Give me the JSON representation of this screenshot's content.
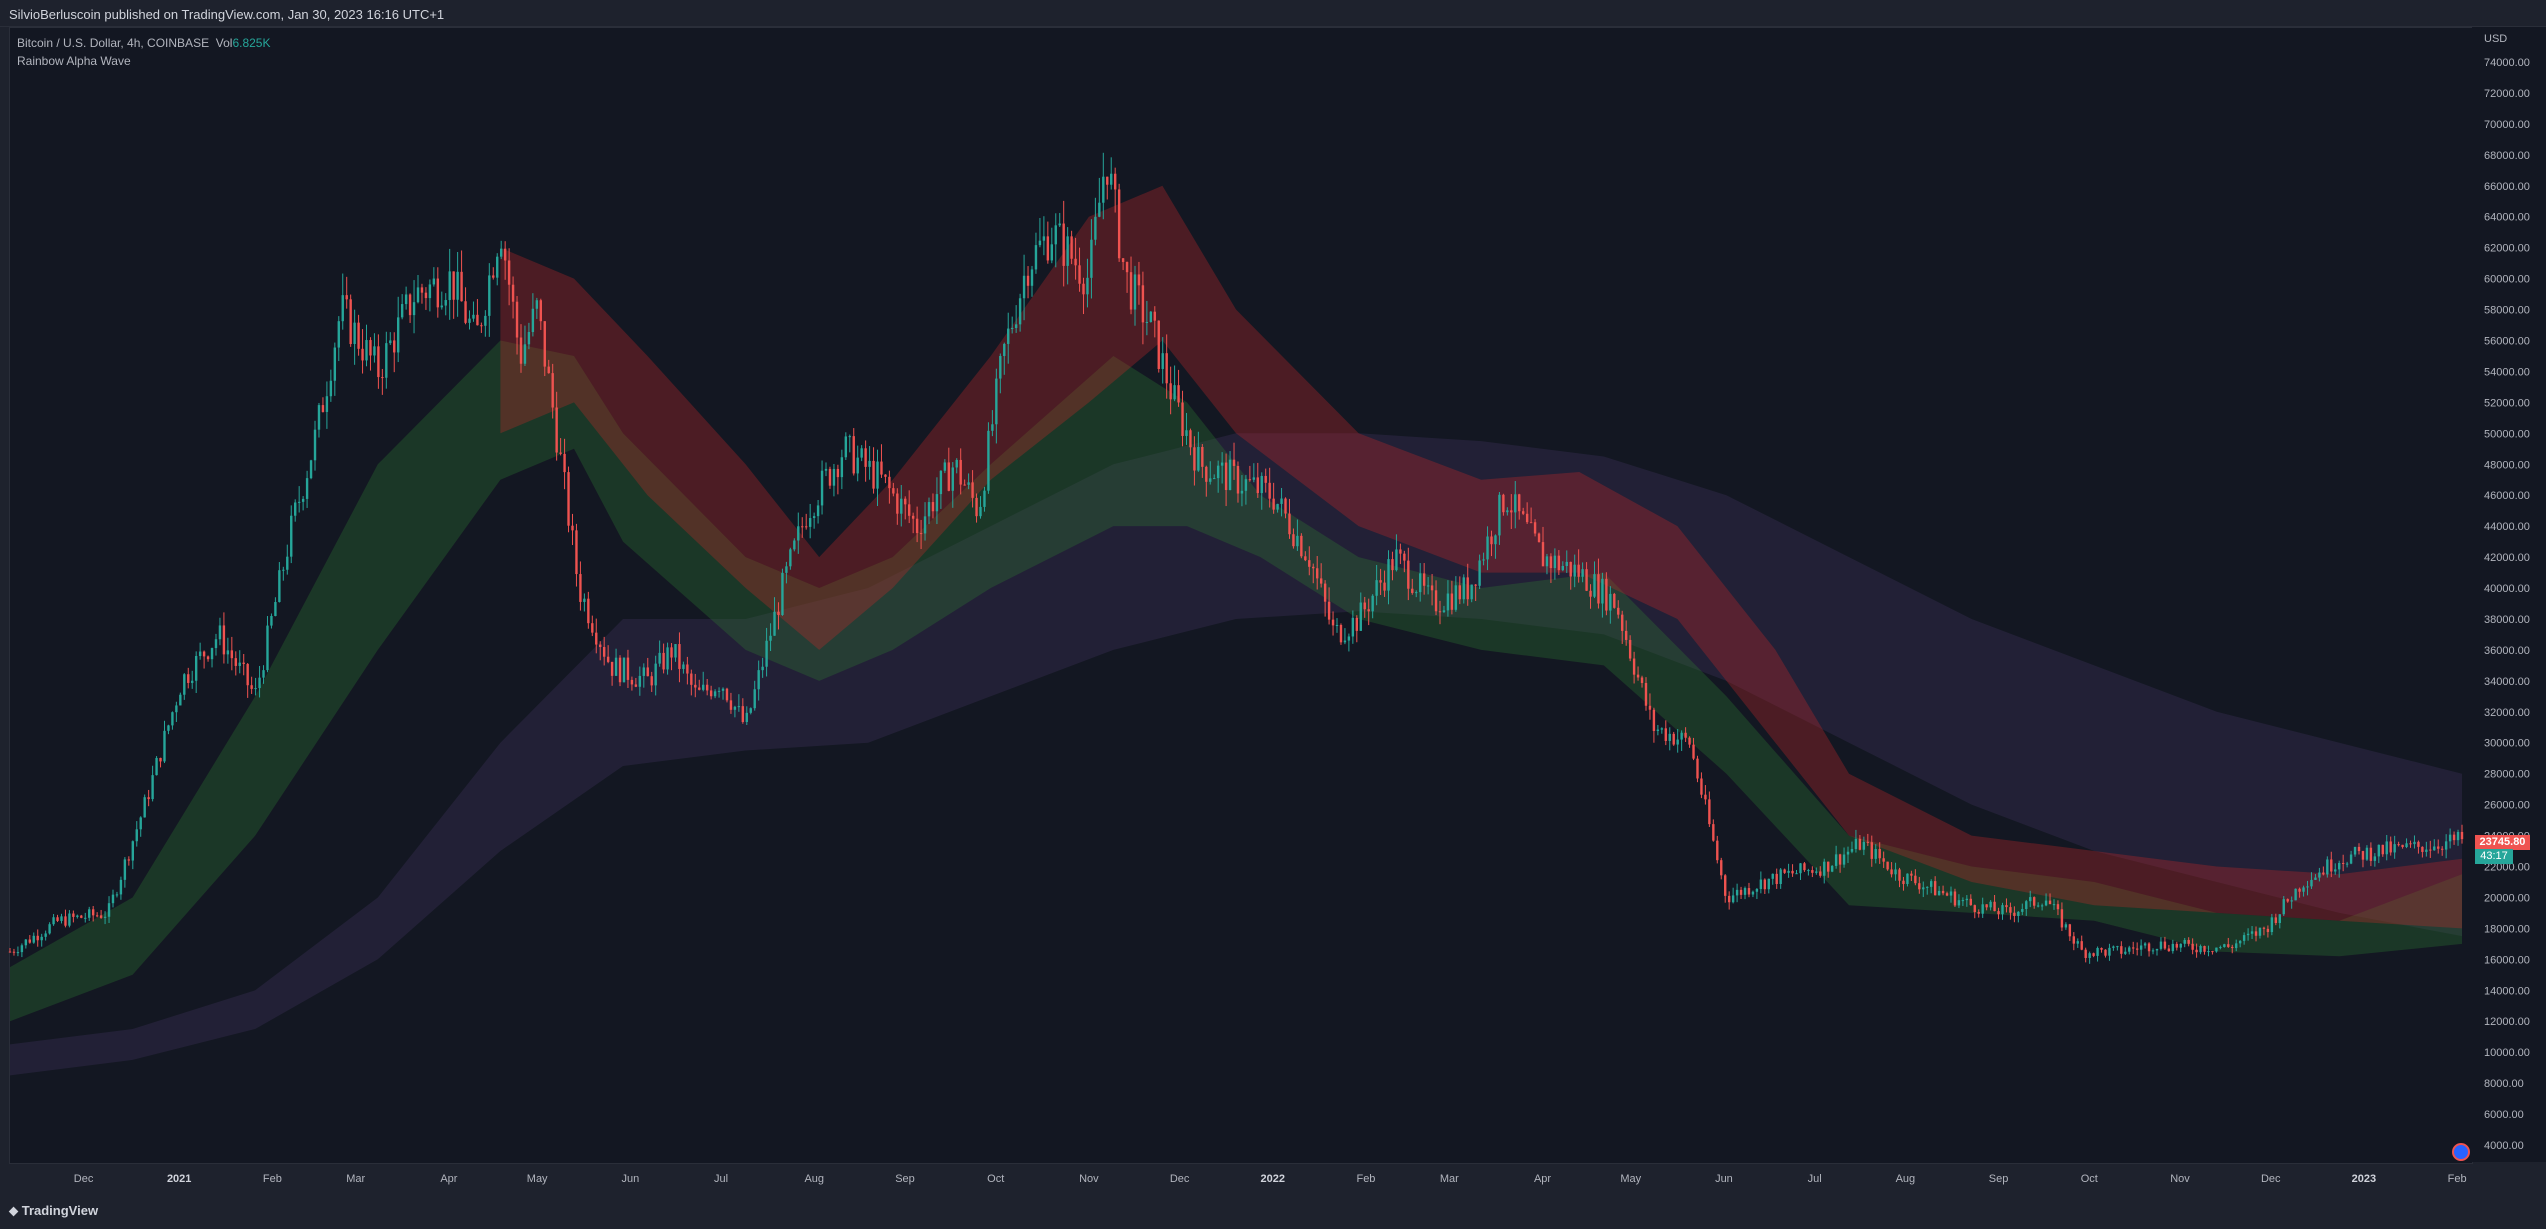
{
  "header": {
    "title": "SilvioBerluscoin published on TradingView.com, Jan 30, 2023 16:16 UTC+1"
  },
  "legend": {
    "symbol": "Bitcoin / U.S. Dollar, 4h, COINBASE",
    "vol_label": "Vol",
    "vol_value": "6.825K",
    "indicator": "Rainbow Alpha Wave"
  },
  "price_axis": {
    "currency": "USD",
    "last_price": "23745.80",
    "timer": "43:17"
  },
  "footer": {
    "brand": "TradingView"
  },
  "colors": {
    "background": "#131722",
    "up": "#26a69a",
    "down": "#ef5350",
    "band_green": "#2e7d32",
    "band_red": "#c62828",
    "band_purple": "#4a3a6a"
  },
  "chart_data": {
    "type": "line",
    "title": "",
    "xlabel": "",
    "ylabel": "",
    "ylim": [
      3000,
      76000
    ],
    "grid": false,
    "y_ticks": [
      "74000.00",
      "72000.00",
      "70000.00",
      "68000.00",
      "66000.00",
      "64000.00",
      "62000.00",
      "60000.00",
      "58000.00",
      "56000.00",
      "54000.00",
      "52000.00",
      "50000.00",
      "48000.00",
      "46000.00",
      "44000.00",
      "42000.00",
      "40000.00",
      "38000.00",
      "36000.00",
      "34000.00",
      "32000.00",
      "30000.00",
      "28000.00",
      "26000.00",
      "24000.00",
      "22000.00",
      "20000.00",
      "18000.00",
      "16000.00",
      "14000.00",
      "12000.00",
      "10000.00",
      "8000.00",
      "6000.00",
      "4000.00"
    ],
    "x_ticks": [
      {
        "label": "Dec",
        "t": 0.03,
        "bold": false
      },
      {
        "label": "2021",
        "t": 0.069,
        "bold": true
      },
      {
        "label": "Feb",
        "t": 0.107,
        "bold": false
      },
      {
        "label": "Mar",
        "t": 0.141,
        "bold": false
      },
      {
        "label": "Apr",
        "t": 0.179,
        "bold": false
      },
      {
        "label": "May",
        "t": 0.215,
        "bold": false
      },
      {
        "label": "Jun",
        "t": 0.253,
        "bold": false
      },
      {
        "label": "Jul",
        "t": 0.29,
        "bold": false
      },
      {
        "label": "Aug",
        "t": 0.328,
        "bold": false
      },
      {
        "label": "Sep",
        "t": 0.365,
        "bold": false
      },
      {
        "label": "Oct",
        "t": 0.402,
        "bold": false
      },
      {
        "label": "Nov",
        "t": 0.44,
        "bold": false
      },
      {
        "label": "Dec",
        "t": 0.477,
        "bold": false
      },
      {
        "label": "2022",
        "t": 0.515,
        "bold": true
      },
      {
        "label": "Feb",
        "t": 0.553,
        "bold": false
      },
      {
        "label": "Mar",
        "t": 0.587,
        "bold": false
      },
      {
        "label": "Apr",
        "t": 0.625,
        "bold": false
      },
      {
        "label": "May",
        "t": 0.661,
        "bold": false
      },
      {
        "label": "Jun",
        "t": 0.699,
        "bold": false
      },
      {
        "label": "Jul",
        "t": 0.736,
        "bold": false
      },
      {
        "label": "Aug",
        "t": 0.773,
        "bold": false
      },
      {
        "label": "Sep",
        "t": 0.811,
        "bold": false
      },
      {
        "label": "Oct",
        "t": 0.848,
        "bold": false
      },
      {
        "label": "Nov",
        "t": 0.885,
        "bold": false
      },
      {
        "label": "Dec",
        "t": 0.922,
        "bold": false
      },
      {
        "label": "2023",
        "t": 0.96,
        "bold": true
      },
      {
        "label": "Feb",
        "t": 0.998,
        "bold": false
      }
    ],
    "series": [
      {
        "kind": "price",
        "t": [
          0,
          0.02,
          0.04,
          0.055,
          0.07,
          0.085,
          0.1,
          0.115,
          0.125,
          0.135,
          0.15,
          0.165,
          0.18,
          0.19,
          0.2,
          0.208,
          0.215,
          0.222,
          0.232,
          0.245,
          0.26,
          0.27,
          0.28,
          0.29,
          0.3,
          0.315,
          0.325,
          0.34,
          0.355,
          0.37,
          0.385,
          0.395,
          0.405,
          0.415,
          0.425,
          0.44,
          0.447,
          0.455,
          0.465,
          0.475,
          0.485,
          0.5,
          0.515,
          0.53,
          0.54,
          0.55,
          0.565,
          0.58,
          0.595,
          0.61,
          0.625,
          0.64,
          0.655,
          0.67,
          0.685,
          0.7,
          0.715,
          0.725,
          0.74,
          0.755,
          0.77,
          0.785,
          0.8,
          0.815,
          0.83,
          0.845,
          0.86,
          0.875,
          0.89,
          0.905,
          0.92,
          0.935,
          0.95,
          0.965,
          0.98,
          1.0
        ],
        "values": [
          16500,
          18500,
          19000,
          26000,
          34000,
          37000,
          33000,
          44000,
          50000,
          58000,
          54000,
          59000,
          60000,
          56000,
          63500,
          55000,
          58000,
          51000,
          40000,
          35000,
          34000,
          36000,
          33000,
          34000,
          31000,
          40000,
          45000,
          49000,
          47000,
          44000,
          48000,
          45000,
          55000,
          61000,
          63000,
          60000,
          68000,
          60000,
          57000,
          52000,
          48000,
          47000,
          46000,
          42000,
          37000,
          38000,
          42000,
          39000,
          40000,
          46000,
          42000,
          41000,
          39000,
          31000,
          30000,
          20000,
          21000,
          21500,
          22000,
          23500,
          21500,
          20500,
          19500,
          19000,
          20000,
          16500,
          16500,
          17000,
          16800,
          16800,
          18000,
          21000,
          22500,
          23000,
          23200,
          23745
        ]
      },
      {
        "kind": "band",
        "color": "green",
        "t": [
          0,
          0.05,
          0.1,
          0.15,
          0.2,
          0.23,
          0.25,
          0.3,
          0.33,
          0.36,
          0.4,
          0.45,
          0.48,
          0.51,
          0.55,
          0.6,
          0.65,
          0.7,
          0.75,
          0.8,
          0.85,
          0.9,
          0.95,
          1.0
        ],
        "upper": [
          15500,
          20000,
          33000,
          48000,
          56000,
          55000,
          50000,
          42000,
          40000,
          42000,
          48000,
          55000,
          52000,
          46000,
          42000,
          40000,
          41000,
          33000,
          24000,
          22000,
          21000,
          19000,
          18500,
          21500
        ],
        "lower": [
          12000,
          15000,
          24000,
          36000,
          47000,
          49000,
          43000,
          36000,
          34000,
          36000,
          40000,
          44000,
          44000,
          42000,
          38000,
          36000,
          35000,
          28000,
          19500,
          19000,
          18500,
          16500,
          16200,
          17000
        ]
      },
      {
        "kind": "band",
        "color": "red",
        "t": [
          0.2,
          0.23,
          0.26,
          0.3,
          0.33,
          0.36,
          0.4,
          0.44,
          0.47,
          0.5,
          0.55,
          0.6,
          0.64,
          0.68,
          0.72,
          0.75,
          0.8,
          0.85,
          0.9,
          0.95,
          1.0
        ],
        "upper": [
          62000,
          60000,
          55000,
          48000,
          42000,
          47000,
          55000,
          64000,
          66000,
          58000,
          50000,
          47000,
          47500,
          44000,
          36000,
          28000,
          24000,
          23000,
          22000,
          21500,
          22500
        ],
        "lower": [
          50000,
          52000,
          46000,
          40000,
          36000,
          40000,
          47000,
          52000,
          56000,
          50000,
          44000,
          41000,
          41000,
          38000,
          30000,
          24000,
          21000,
          19500,
          19000,
          18500,
          18000
        ]
      },
      {
        "kind": "band",
        "color": "purple",
        "t": [
          0,
          0.05,
          0.1,
          0.15,
          0.2,
          0.25,
          0.3,
          0.35,
          0.4,
          0.45,
          0.5,
          0.55,
          0.6,
          0.65,
          0.7,
          0.75,
          0.8,
          0.85,
          0.9,
          0.95,
          1.0
        ],
        "upper": [
          10500,
          11500,
          14000,
          20000,
          30000,
          38000,
          38000,
          40000,
          44000,
          48000,
          50000,
          50000,
          49500,
          48500,
          46000,
          42000,
          38000,
          35000,
          32000,
          30000,
          28000
        ],
        "lower": [
          8500,
          9500,
          11500,
          16000,
          23000,
          28500,
          29500,
          30000,
          33000,
          36000,
          38000,
          38500,
          38000,
          37000,
          34000,
          30000,
          26000,
          23000,
          21000,
          19000,
          17500
        ]
      }
    ]
  }
}
